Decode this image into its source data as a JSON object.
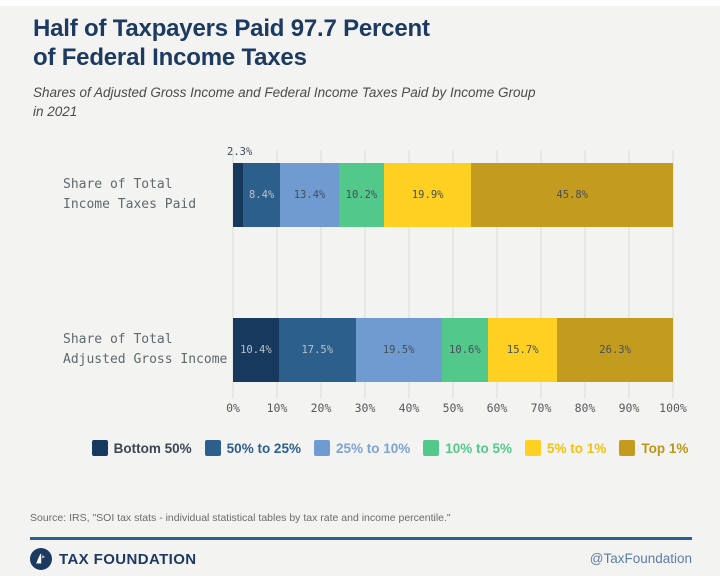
{
  "header": {
    "title": "Half of Taxpayers Paid 97.7 Percent\nof Federal Income Taxes",
    "subtitle": "Shares of Adjusted Gross Income and Federal Income Taxes Paid by Income Group\nin 2021"
  },
  "chart_data": {
    "type": "bar",
    "orientation": "horizontal",
    "stacked": true,
    "grid": true,
    "legend_position": "bottom",
    "xlim": [
      0,
      100
    ],
    "value_suffix": "%",
    "x_ticks": [
      "0%",
      "10%",
      "20%",
      "30%",
      "40%",
      "50%",
      "60%",
      "70%",
      "80%",
      "90%",
      "100%"
    ],
    "categories": [
      "Share of Total\nIncome Taxes Paid",
      "Share of Total\nAdjusted Gross Income"
    ],
    "series": [
      {
        "name": "Bottom 50%",
        "color": "#17395d",
        "legend_text_color": "#3d4653",
        "label_color": "#b9c3cd",
        "values": [
          2.3,
          10.4
        ]
      },
      {
        "name": "50% to 25%",
        "color": "#2d5f8c",
        "legend_text_color": "#2d5f8c",
        "label_color": "#b9c3cd",
        "values": [
          8.4,
          17.5
        ]
      },
      {
        "name": "25% to 10%",
        "color": "#6f9bd1",
        "legend_text_color": "#7da3d3",
        "label_color": "#454e5a",
        "values": [
          13.4,
          19.5
        ]
      },
      {
        "name": "10% to 5%",
        "color": "#52c98a",
        "legend_text_color": "#52c98a",
        "label_color": "#454e5a",
        "values": [
          10.2,
          10.6
        ]
      },
      {
        "name": "5% to 1%",
        "color": "#fdd021",
        "legend_text_color": "#efc113",
        "label_color": "#454e5a",
        "values": [
          19.9,
          15.7
        ]
      },
      {
        "name": "Top 1%",
        "color": "#c39b1e",
        "legend_text_color": "#bd9619",
        "label_color": "#454e5a",
        "values": [
          45.8,
          26.3
        ]
      }
    ]
  },
  "footer": {
    "source": "Source: IRS, \"SOI tax stats - individual statistical tables by tax rate and income percentile.\"",
    "brand": "TAX FOUNDATION",
    "handle": "@TaxFoundation"
  },
  "colors": {
    "background": "#f3f3f1",
    "title": "#1d3a60",
    "rule": "#2d5f8e",
    "gridline": "#e7e7e4"
  }
}
